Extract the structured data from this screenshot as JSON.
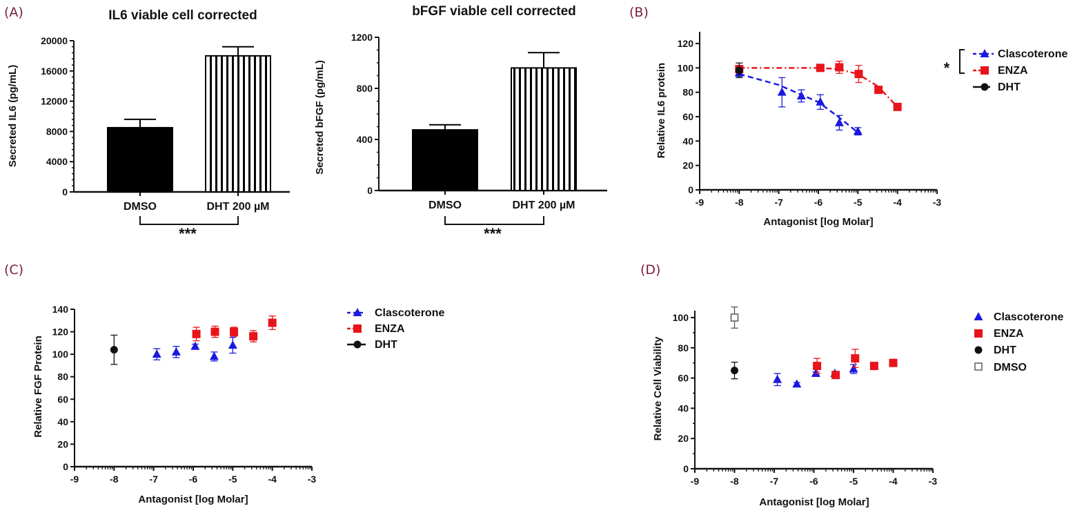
{
  "figure": {
    "panel_labels": [
      "(A)",
      "(B)",
      "(C)",
      "(D)"
    ]
  },
  "chart_data": [
    {
      "id": "A1",
      "type": "bar",
      "panel": "(A)",
      "title": "IL6 viable cell corrected",
      "xlabel": "",
      "ylabel": "Secreted IL6 (pg/mL)",
      "categories": [
        "DMSO",
        "DHT 200 µM"
      ],
      "values": [
        8500,
        18000
      ],
      "errors": [
        1100,
        1200
      ],
      "fills": [
        "solid",
        "vertical-stripes"
      ],
      "ylim": [
        0,
        20000
      ],
      "yticks": [
        0,
        4000,
        8000,
        12000,
        16000,
        20000
      ],
      "significance": {
        "between": [
          "DMSO",
          "DHT 200 µM"
        ],
        "label": "***"
      }
    },
    {
      "id": "A2",
      "type": "bar",
      "panel": "(A)",
      "title": "bFGF viable cell corrected",
      "xlabel": "",
      "ylabel": "Secreted bFGF (pg/mL)",
      "categories": [
        "DMSO",
        "DHT 200 µM"
      ],
      "values": [
        475,
        960
      ],
      "errors": [
        40,
        120
      ],
      "fills": [
        "solid",
        "vertical-stripes"
      ],
      "ylim": [
        0,
        1200
      ],
      "yticks": [
        0,
        400,
        800,
        1200
      ],
      "significance": {
        "between": [
          "DMSO",
          "DHT 200 µM"
        ],
        "label": "***"
      }
    },
    {
      "id": "B",
      "type": "scatter",
      "panel": "(B)",
      "title": "",
      "xlabel": "Antagonist [log Molar]",
      "ylabel": "Relative IL6 protein",
      "xlim": [
        -9,
        -3
      ],
      "ylim": [
        0,
        130
      ],
      "xticks": [
        -9,
        -8,
        -7,
        -6,
        -5,
        -4,
        -3
      ],
      "yticks": [
        0,
        20,
        40,
        60,
        80,
        100,
        120
      ],
      "legend_position": "right",
      "legend_bracket": {
        "items": [
          "Clascoterone",
          "ENZA"
        ],
        "label": "*"
      },
      "series": [
        {
          "name": "Clascoterone",
          "color": "#1a1adf",
          "marker": "triangle",
          "line": "dashed",
          "x": [
            -8,
            -6.92,
            -6.43,
            -5.95,
            -5.47,
            -5
          ],
          "y": [
            96,
            80,
            77,
            72,
            55,
            48
          ],
          "err": [
            3,
            12,
            5,
            6,
            6,
            3
          ],
          "fit": {
            "x": [
              -8,
              -7,
              -6,
              -5.5,
              -5
            ],
            "y": [
              95,
              86,
              72,
              60,
              47
            ]
          }
        },
        {
          "name": "ENZA",
          "color": "#e8141a",
          "marker": "square",
          "line": "dash-dot",
          "x": [
            -8,
            -5.95,
            -5.47,
            -4.98,
            -4.48,
            -4
          ],
          "y": [
            99,
            100,
            100.5,
            95,
            82,
            68
          ],
          "err": [
            3,
            2,
            5,
            7,
            2,
            2
          ],
          "fit": {
            "x": [
              -8,
              -6,
              -5.5,
              -5,
              -4.5,
              -4
            ],
            "y": [
              100,
              100,
              99,
              95,
              85,
              68
            ]
          }
        },
        {
          "name": "DHT",
          "color": "#111111",
          "marker": "circle",
          "line": "solid",
          "x": [
            -8
          ],
          "y": [
            98
          ],
          "err": [
            6
          ]
        }
      ]
    },
    {
      "id": "C",
      "type": "scatter",
      "panel": "(C)",
      "title": "",
      "xlabel": "Antagonist [log Molar]",
      "ylabel": "Relative FGF Protein",
      "xlim": [
        -9,
        -3
      ],
      "ylim": [
        0,
        140
      ],
      "xticks": [
        -9,
        -8,
        -7,
        -6,
        -5,
        -4,
        -3
      ],
      "yticks": [
        0,
        20,
        40,
        60,
        80,
        100,
        120,
        140
      ],
      "legend_position": "right",
      "series": [
        {
          "name": "Clascoterone",
          "color": "#1a1adf",
          "marker": "triangle",
          "line": "dashed",
          "x": [
            -6.92,
            -6.43,
            -5.95,
            -5.47,
            -5
          ],
          "y": [
            100,
            102,
            107,
            98,
            108
          ],
          "err": [
            5,
            5,
            2,
            4,
            7
          ]
        },
        {
          "name": "ENZA",
          "color": "#e8141a",
          "marker": "square",
          "line": "dash-dot",
          "x": [
            -5.92,
            -5.45,
            -4.97,
            -4.48,
            -4
          ],
          "y": [
            118,
            120,
            120,
            116,
            128
          ],
          "err": [
            6,
            5,
            4,
            5,
            6
          ]
        },
        {
          "name": "DHT",
          "color": "#111111",
          "marker": "circle",
          "line": "solid",
          "x": [
            -8
          ],
          "y": [
            104
          ],
          "err": [
            13
          ]
        }
      ]
    },
    {
      "id": "D",
      "type": "scatter",
      "panel": "(D)",
      "title": "",
      "xlabel": "Antagonist [log Molar]",
      "ylabel": "Relative Cell Viability",
      "xlim": [
        -9,
        -3
      ],
      "ylim": [
        0,
        105
      ],
      "xticks": [
        -9,
        -8,
        -7,
        -6,
        -5,
        -4,
        -3
      ],
      "yticks": [
        0,
        20,
        40,
        60,
        80,
        100
      ],
      "legend_position": "right",
      "series": [
        {
          "name": "Clascoterone",
          "color": "#1a1adf",
          "marker": "triangle",
          "line": "none",
          "x": [
            -6.92,
            -6.43,
            -5.95,
            -5.47,
            -5
          ],
          "y": [
            59,
            56,
            63,
            63,
            66
          ],
          "err": [
            4,
            1,
            1,
            1,
            3
          ]
        },
        {
          "name": "ENZA",
          "color": "#e8141a",
          "marker": "square",
          "line": "none",
          "x": [
            -5.92,
            -5.45,
            -4.96,
            -4.48,
            -4
          ],
          "y": [
            68,
            62,
            73,
            68,
            70
          ],
          "err": [
            5,
            1,
            6,
            1,
            1
          ]
        },
        {
          "name": "DHT",
          "color": "#111111",
          "marker": "circle",
          "line": "none",
          "x": [
            -8
          ],
          "y": [
            65
          ],
          "err": [
            5.5
          ]
        },
        {
          "name": "DMSO",
          "color": "#111111",
          "marker": "open-square",
          "line": "none",
          "x": [
            -8
          ],
          "y": [
            100
          ],
          "err": [
            7
          ]
        }
      ]
    }
  ]
}
